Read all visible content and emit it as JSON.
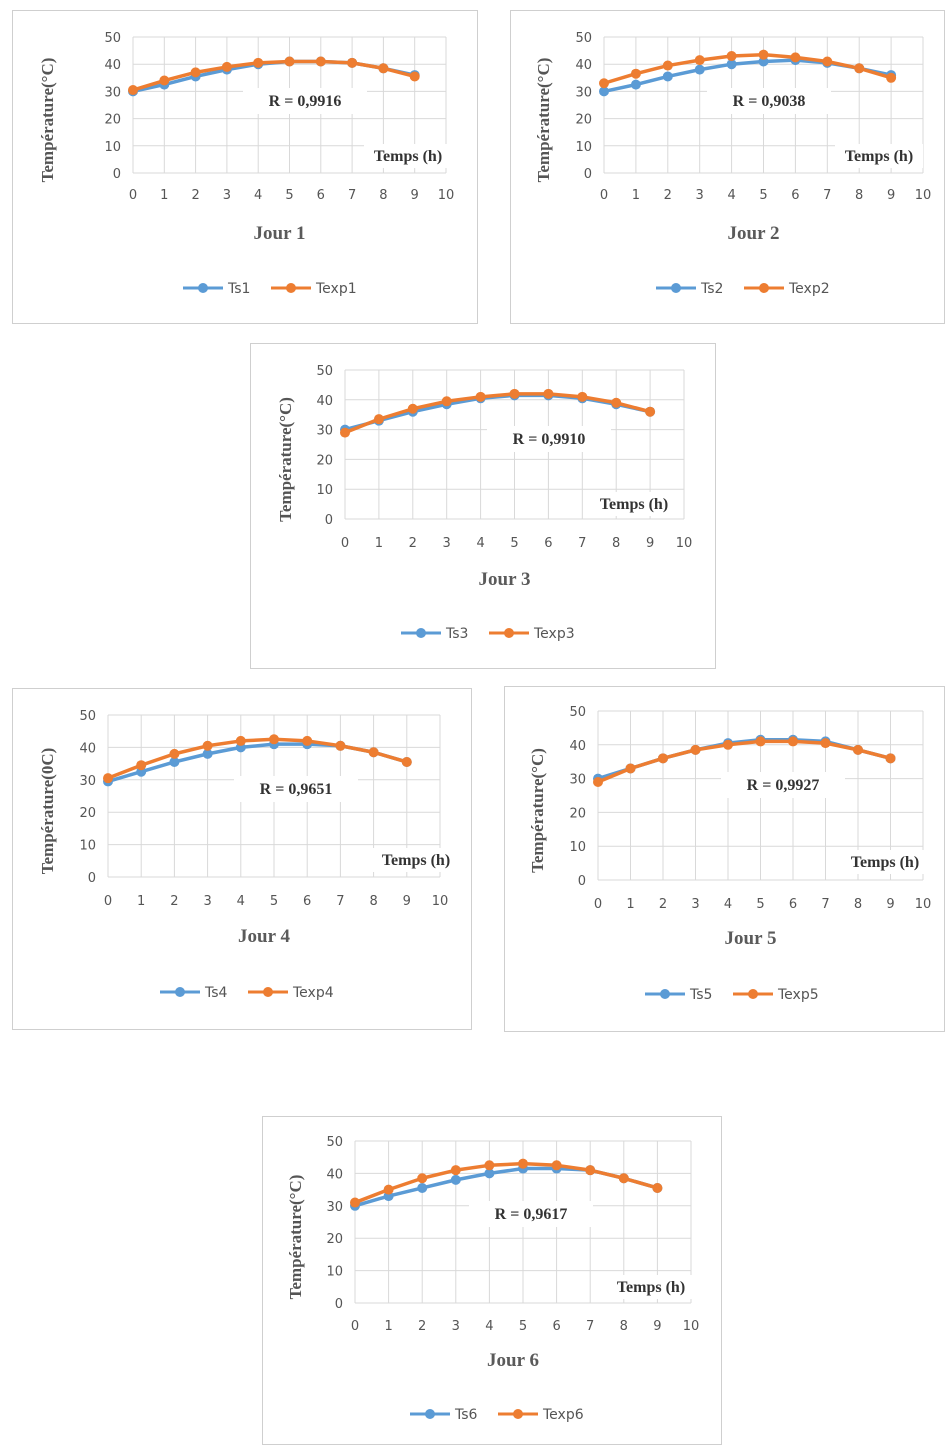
{
  "chart_data": [
    {
      "type": "line",
      "title": "Jour 1",
      "ylabel": "Température(°C)",
      "xlabel": "Temps (h)",
      "annotation": "R = 0,9916",
      "x": [
        0,
        1,
        2,
        3,
        4,
        5,
        6,
        7,
        8,
        9
      ],
      "xticks": [
        0,
        1,
        2,
        3,
        4,
        5,
        6,
        7,
        8,
        9,
        10
      ],
      "yticks": [
        0,
        10,
        20,
        30,
        40,
        50
      ],
      "xlim": [
        0,
        10
      ],
      "ylim": [
        0,
        50
      ],
      "grid": true,
      "legend": "bottom",
      "series": [
        {
          "name": "Ts1",
          "color": "#5B9BD5",
          "values": [
            30,
            32.5,
            35.5,
            38,
            40,
            41,
            41,
            40.5,
            38.5,
            36
          ]
        },
        {
          "name": "Texp1",
          "color": "#ED7D31",
          "values": [
            30.5,
            34,
            37,
            39,
            40.5,
            41,
            41,
            40.5,
            38.5,
            35.5
          ]
        }
      ]
    },
    {
      "type": "line",
      "title": "Jour 2",
      "ylabel": "Température(°C)",
      "xlabel": "Temps (h)",
      "annotation": "R = 0,9038",
      "x": [
        0,
        1,
        2,
        3,
        4,
        5,
        6,
        7,
        8,
        9
      ],
      "xticks": [
        0,
        1,
        2,
        3,
        4,
        5,
        6,
        7,
        8,
        9,
        10
      ],
      "yticks": [
        0,
        10,
        20,
        30,
        40,
        50
      ],
      "xlim": [
        0,
        10
      ],
      "ylim": [
        0,
        50
      ],
      "grid": true,
      "legend": "bottom",
      "series": [
        {
          "name": "Ts2",
          "color": "#5B9BD5",
          "values": [
            30,
            32.5,
            35.5,
            38,
            40,
            41,
            41.5,
            40.5,
            38.5,
            36
          ]
        },
        {
          "name": "Texp2",
          "color": "#ED7D31",
          "values": [
            33,
            36.5,
            39.5,
            41.5,
            43,
            43.5,
            42.5,
            41,
            38.5,
            35
          ]
        }
      ]
    },
    {
      "type": "line",
      "title": "Jour 3",
      "ylabel": "Température(°C)",
      "xlabel": "Temps (h)",
      "annotation": "R = 0,9910",
      "x": [
        0,
        1,
        2,
        3,
        4,
        5,
        6,
        7,
        8,
        9
      ],
      "xticks": [
        0,
        1,
        2,
        3,
        4,
        5,
        6,
        7,
        8,
        9,
        10
      ],
      "yticks": [
        0,
        10,
        20,
        30,
        40,
        50
      ],
      "xlim": [
        0,
        10
      ],
      "ylim": [
        0,
        50
      ],
      "grid": true,
      "legend": "bottom",
      "series": [
        {
          "name": "Ts3",
          "color": "#5B9BD5",
          "values": [
            30,
            33,
            36,
            38.5,
            40.5,
            41.5,
            41.5,
            40.5,
            38.5,
            36
          ]
        },
        {
          "name": "Texp3",
          "color": "#ED7D31",
          "values": [
            29,
            33.5,
            37,
            39.5,
            41,
            42,
            42,
            41,
            39,
            36
          ]
        }
      ]
    },
    {
      "type": "line",
      "title": "Jour 4",
      "ylabel": "Température(0C)",
      "xlabel": "Temps (h)",
      "annotation": "R = 0,9651",
      "x": [
        0,
        1,
        2,
        3,
        4,
        5,
        6,
        7,
        8,
        9
      ],
      "xticks": [
        0,
        1,
        2,
        3,
        4,
        5,
        6,
        7,
        8,
        9,
        10
      ],
      "yticks": [
        0,
        10,
        20,
        30,
        40,
        50
      ],
      "xlim": [
        0,
        10
      ],
      "ylim": [
        0,
        50
      ],
      "grid": true,
      "legend": "bottom",
      "series": [
        {
          "name": "Ts4",
          "color": "#5B9BD5",
          "values": [
            29.5,
            32.5,
            35.5,
            38,
            40,
            41,
            41,
            40.5,
            38.5,
            35.5
          ]
        },
        {
          "name": "Texp4",
          "color": "#ED7D31",
          "values": [
            30.5,
            34.5,
            38,
            40.5,
            42,
            42.5,
            42,
            40.5,
            38.5,
            35.5
          ]
        }
      ]
    },
    {
      "type": "line",
      "title": "Jour 5",
      "ylabel": "Température(°C)",
      "xlabel": "Temps (h)",
      "annotation": "R = 0,9927",
      "x": [
        0,
        1,
        2,
        3,
        4,
        5,
        6,
        7,
        8,
        9
      ],
      "xticks": [
        0,
        1,
        2,
        3,
        4,
        5,
        6,
        7,
        8,
        9,
        10
      ],
      "yticks": [
        0,
        10,
        20,
        30,
        40,
        50
      ],
      "xlim": [
        0,
        10
      ],
      "ylim": [
        0,
        50
      ],
      "grid": true,
      "legend": "bottom",
      "series": [
        {
          "name": "Ts5",
          "color": "#5B9BD5",
          "values": [
            30,
            33,
            36,
            38.5,
            40.5,
            41.5,
            41.5,
            41,
            38.5,
            36
          ]
        },
        {
          "name": "Texp5",
          "color": "#ED7D31",
          "values": [
            29,
            33,
            36,
            38.5,
            40,
            41,
            41,
            40.5,
            38.5,
            36
          ]
        }
      ]
    },
    {
      "type": "line",
      "title": "Jour 6",
      "ylabel": "Température(°C)",
      "xlabel": "Temps (h)",
      "annotation": "R = 0,9617",
      "x": [
        0,
        1,
        2,
        3,
        4,
        5,
        6,
        7,
        8,
        9
      ],
      "xticks": [
        0,
        1,
        2,
        3,
        4,
        5,
        6,
        7,
        8,
        9,
        10
      ],
      "yticks": [
        0,
        10,
        20,
        30,
        40,
        50
      ],
      "xlim": [
        0,
        10
      ],
      "ylim": [
        0,
        50
      ],
      "grid": true,
      "legend": "bottom",
      "series": [
        {
          "name": "Ts6",
          "color": "#5B9BD5",
          "values": [
            30,
            33,
            35.5,
            38,
            40,
            41.5,
            41.5,
            41,
            38.5,
            35.5
          ]
        },
        {
          "name": "Texp6",
          "color": "#ED7D31",
          "values": [
            31,
            35,
            38.5,
            41,
            42.5,
            43,
            42.5,
            41,
            38.5,
            35.5
          ]
        }
      ]
    }
  ]
}
